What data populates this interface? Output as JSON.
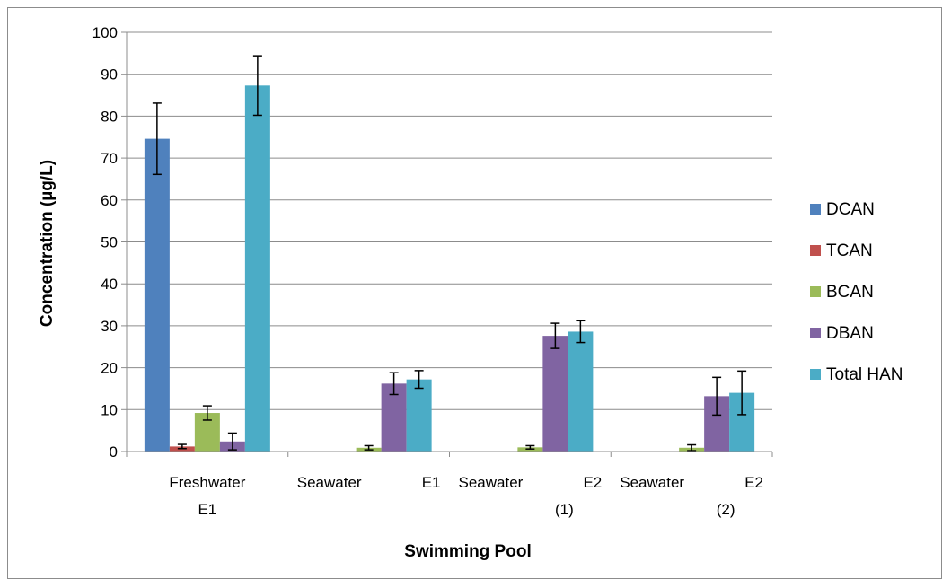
{
  "chart_data": {
    "type": "bar",
    "categories": [
      "Freshwater E1",
      "Seawater E1",
      "Seawater (1) E2",
      "Seawater (2) E2"
    ],
    "category_label_lines": [
      [
        "Freshwater",
        "E1"
      ],
      [
        "Seawater",
        "E1"
      ],
      [
        "Seawater",
        "E2",
        "(1)"
      ],
      [
        "Seawater",
        "E2",
        "(2)"
      ]
    ],
    "series": [
      {
        "name": "DCAN",
        "color": "#4F81BD",
        "values": [
          74.6,
          0,
          0,
          0
        ],
        "errors": [
          8.5,
          0,
          0,
          0
        ]
      },
      {
        "name": "TCAN",
        "color": "#C0504D",
        "values": [
          1.2,
          0,
          0,
          0
        ],
        "errors": [
          0.5,
          0,
          0,
          0
        ]
      },
      {
        "name": "BCAN",
        "color": "#9BBB59",
        "values": [
          9.2,
          0.9,
          1.0,
          0.9
        ],
        "errors": [
          1.7,
          0.5,
          0.4,
          0.7
        ]
      },
      {
        "name": "DBAN",
        "color": "#8064A2",
        "values": [
          2.4,
          16.2,
          27.6,
          13.2
        ],
        "errors": [
          2.0,
          2.6,
          3.0,
          4.5
        ]
      },
      {
        "name": "Total HAN",
        "color": "#4BACC6",
        "values": [
          87.3,
          17.2,
          28.6,
          14.0
        ],
        "errors": [
          7.1,
          2.1,
          2.6,
          5.2
        ]
      }
    ],
    "xlabel": "Swimming Pool",
    "ylabel": "Concentration (µg/L)",
    "ylim": [
      0,
      100
    ],
    "yticks": [
      0,
      10,
      20,
      30,
      40,
      50,
      60,
      70,
      80,
      90,
      100
    ],
    "grid": true,
    "legend_position": "right"
  }
}
